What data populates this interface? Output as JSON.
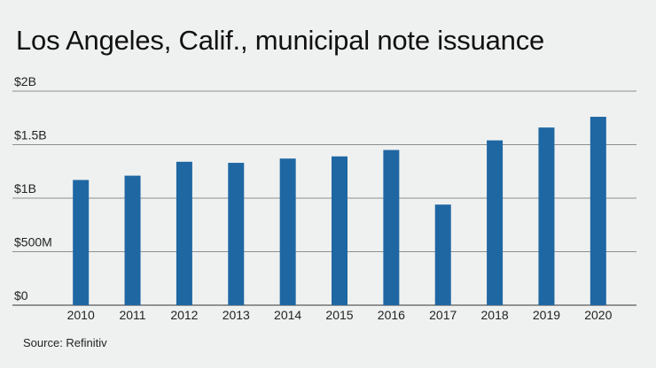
{
  "title": "Los Angeles, Calif., municipal note issuance",
  "source": "Source: Refinitiv",
  "colors": {
    "bar": "#1f67a3",
    "grid": "#8d9091",
    "background": "#eff1f0",
    "text": "#111111"
  },
  "chart_data": {
    "type": "bar",
    "title": "Los Angeles, Calif., municipal note issuance",
    "xlabel": "",
    "ylabel": "",
    "categories": [
      "2010",
      "2011",
      "2012",
      "2013",
      "2014",
      "2015",
      "2016",
      "2017",
      "2018",
      "2019",
      "2020"
    ],
    "values": [
      1.17,
      1.21,
      1.34,
      1.33,
      1.37,
      1.39,
      1.45,
      0.94,
      1.54,
      1.66,
      1.76
    ],
    "value_unit": "billions of dollars",
    "ylim": [
      0,
      2
    ],
    "yticks": [
      {
        "value": 0,
        "label": "$0"
      },
      {
        "value": 0.5,
        "label": "$500M"
      },
      {
        "value": 1,
        "label": "$1B"
      },
      {
        "value": 1.5,
        "label": "$1.5B"
      },
      {
        "value": 2,
        "label": "$2B"
      }
    ],
    "grid": true,
    "legend": "none"
  }
}
